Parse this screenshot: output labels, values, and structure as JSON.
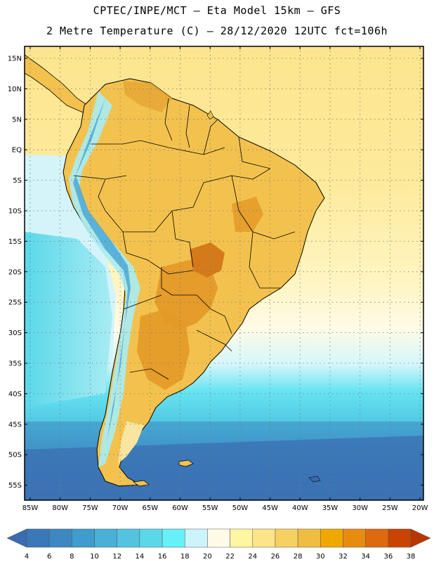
{
  "header": {
    "line1": "CPTEC/INPE/MCT –  Eta Model 15km – GFS",
    "line2": "2 Metre Temperature (C) – 28/12/2020 12UTC fct=106h"
  },
  "axes": {
    "lat_labels": [
      "15N",
      "10N",
      "5N",
      "EQ",
      "5S",
      "10S",
      "15S",
      "20S",
      "25S",
      "30S",
      "35S",
      "40S",
      "45S",
      "50S",
      "55S"
    ],
    "lon_labels": [
      "85W",
      "80W",
      "75W",
      "70W",
      "65W",
      "60W",
      "55W",
      "50W",
      "45W",
      "40W",
      "35W",
      "30W",
      "25W",
      "20W"
    ]
  },
  "colorbar": {
    "labels": [
      "4",
      "6",
      "8",
      "10",
      "12",
      "14",
      "16",
      "18",
      "20",
      "22",
      "24",
      "26",
      "28",
      "30",
      "32",
      "34",
      "36",
      "38"
    ],
    "colors": [
      "#3a78b8",
      "#3e88c2",
      "#3f9ccc",
      "#4ab0d8",
      "#52c4e0",
      "#5ad8ea",
      "#66f0f8",
      "#ccf4fc",
      "#fffbe8",
      "#fef6a0",
      "#fde48a",
      "#f6d060",
      "#efbe40",
      "#f0a800",
      "#e88c10",
      "#de6a10",
      "#c84400"
    ],
    "under_color": "#3a6cb0",
    "over_color": "#b83600"
  },
  "palette": {
    "ocean_warm": "#fde58e",
    "ocean_mid": "#fef3b8",
    "ocean_cool": "#d4f4fa",
    "ocean_cyan": "#5fdcec",
    "ocean_teal": "#4ab8d8",
    "ocean_deep": "#3a7cb6",
    "land_base": "#f3c24e",
    "land_hot": "#e49a28",
    "land_hottest": "#d57a1a",
    "andes_cool": "#a8ecf4",
    "andes_cold": "#4aa8d8",
    "patagonia": "#f8e6a0"
  }
}
